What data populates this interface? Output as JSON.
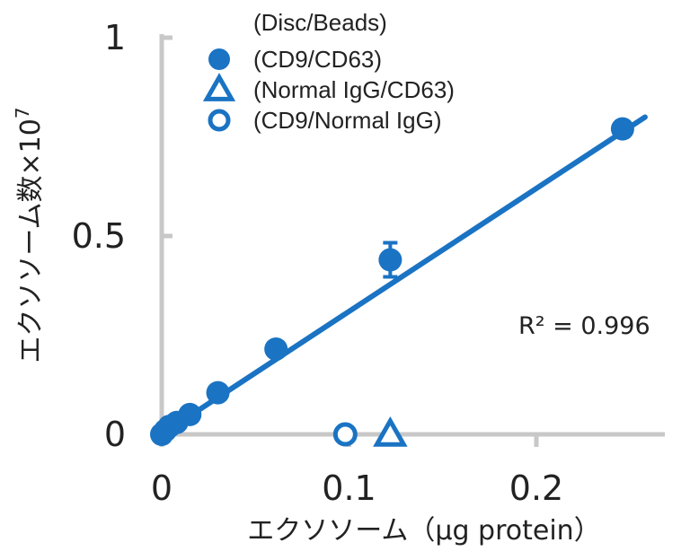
{
  "colors": {
    "series": "#1a73c3",
    "axis": "#c8c8c8",
    "text": "#222222"
  },
  "chart_data": {
    "type": "scatter",
    "xlabel": "エクソソーム（μg protein）",
    "ylabel": "エクソソーム数×10",
    "ylabel_superscript": "7",
    "xlim": [
      0,
      0.26
    ],
    "ylim": [
      0,
      1
    ],
    "xticks": [
      "0",
      "0.1",
      "0.2"
    ],
    "xtick_values": [
      0,
      0.1,
      0.2
    ],
    "yticks": [
      "0",
      "0.5",
      "1"
    ],
    "ytick_values": [
      0,
      0.5,
      1
    ],
    "legend_title": "(Disc/Beads)",
    "legend_position": "top-left",
    "annotation": "R² = 0.996",
    "fit_line": {
      "slope": 3.1,
      "intercept": 0.0,
      "x_range": [
        0,
        0.258
      ]
    },
    "series": [
      {
        "name": "(CD9/CD63)",
        "marker": "filled-circle",
        "points": [
          {
            "x": 0.0,
            "y": 0.0,
            "err": 0
          },
          {
            "x": 0.002,
            "y": 0.01,
            "err": 0
          },
          {
            "x": 0.004,
            "y": 0.02,
            "err": 0
          },
          {
            "x": 0.008,
            "y": 0.03,
            "err": 0
          },
          {
            "x": 0.015,
            "y": 0.05,
            "err": 0
          },
          {
            "x": 0.03,
            "y": 0.105,
            "err": 0
          },
          {
            "x": 0.061,
            "y": 0.215,
            "err": 0
          },
          {
            "x": 0.122,
            "y": 0.44,
            "err": 0.043
          },
          {
            "x": 0.246,
            "y": 0.77,
            "err": 0.01
          }
        ]
      },
      {
        "name": "(Normal IgG/CD63)",
        "marker": "open-triangle",
        "points": [
          {
            "x": 0.122,
            "y": 0.0,
            "err": 0
          }
        ]
      },
      {
        "name": "(CD9/Normal IgG)",
        "marker": "open-circle",
        "points": [
          {
            "x": 0.098,
            "y": 0.0,
            "err": 0
          }
        ]
      }
    ]
  }
}
